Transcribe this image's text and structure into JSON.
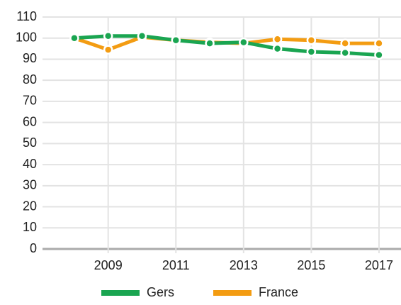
{
  "chart_data": {
    "type": "line",
    "x": [
      2008,
      2009,
      2010,
      2011,
      2012,
      2013,
      2014,
      2015,
      2016,
      2017
    ],
    "series": [
      {
        "name": "Gers",
        "color": "#1aa551",
        "values": [
          100,
          101,
          101,
          99,
          97.5,
          98,
          95,
          93.5,
          93,
          92
        ]
      },
      {
        "name": "France",
        "color": "#f39c12",
        "values": [
          100,
          94.5,
          100.5,
          99,
          98,
          97.5,
          99.5,
          99,
          97.5,
          97.5
        ]
      }
    ],
    "xlim": [
      2007.06,
      2017.65
    ],
    "xticks": [
      2009,
      2011,
      2013,
      2015,
      2017
    ],
    "ylim": [
      0,
      110
    ],
    "yticks": [
      0,
      10,
      20,
      30,
      40,
      50,
      60,
      70,
      80,
      90,
      100,
      110
    ],
    "grid": true,
    "legend": "bottom"
  }
}
